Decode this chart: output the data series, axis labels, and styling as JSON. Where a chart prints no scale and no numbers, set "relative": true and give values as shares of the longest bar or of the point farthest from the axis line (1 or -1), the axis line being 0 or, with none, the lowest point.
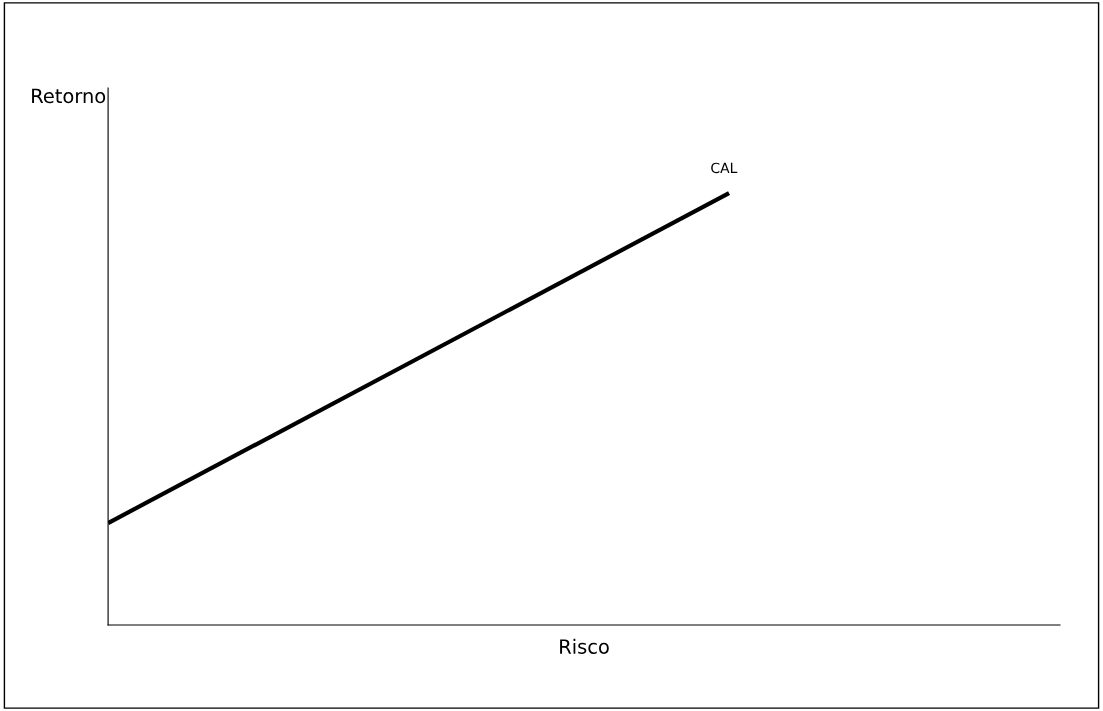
{
  "chart_data": {
    "type": "line",
    "relative": true,
    "xlabel": "Risco",
    "ylabel": "Retorno",
    "categories": [
      null,
      null
    ],
    "series": [
      {
        "name": "CAL",
        "color": "#000000",
        "values": [
          0.236,
          1
        ]
      }
    ],
    "legend": false,
    "marker": "none",
    "line_style": "solid",
    "tick_labels": false
  }
}
